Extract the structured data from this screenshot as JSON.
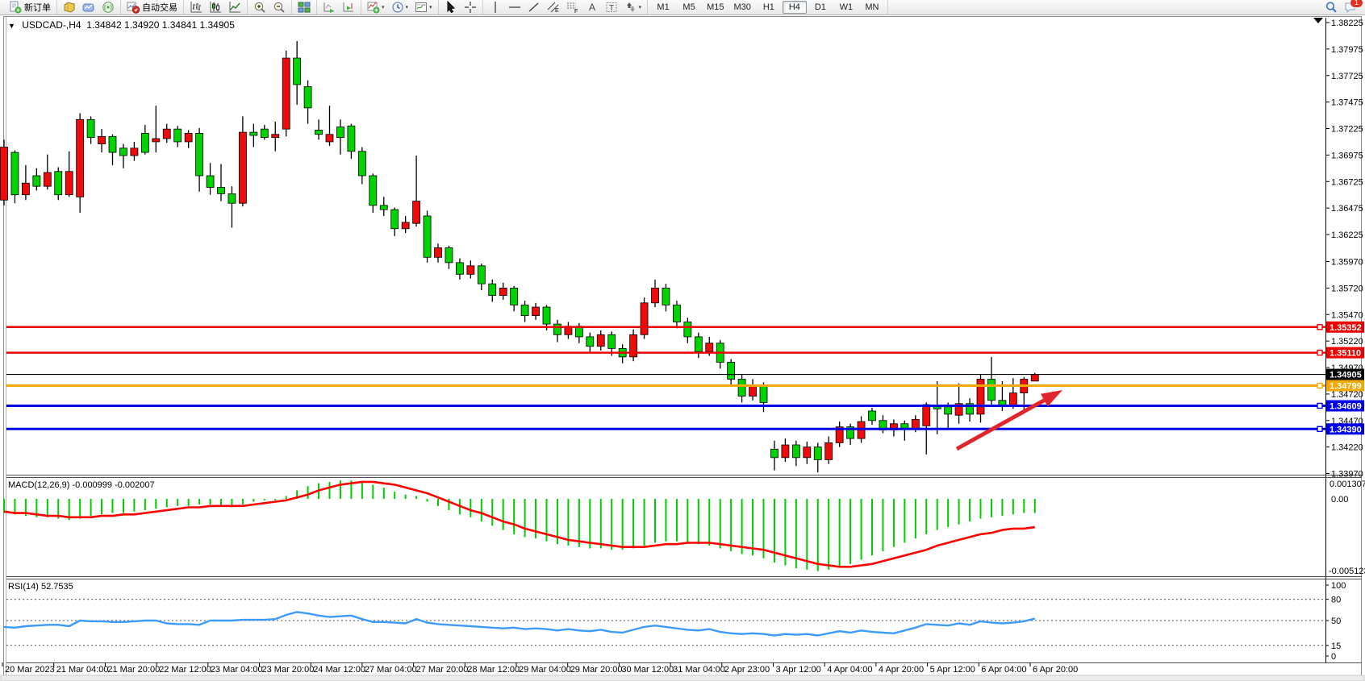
{
  "toolbar": {
    "groups": [
      {
        "items": [
          {
            "name": "new-order-button",
            "icon": "new-order",
            "label": "新订单"
          }
        ]
      },
      {
        "items": [
          {
            "name": "profiles-button",
            "icon": "profiles"
          },
          {
            "name": "charts-button",
            "icon": "charts-cloud"
          },
          {
            "name": "broadcast-button",
            "icon": "broadcast"
          }
        ]
      },
      {
        "items": [
          {
            "name": "auto-trading-button",
            "icon": "auto-trading",
            "label": "自动交易"
          }
        ]
      },
      {
        "items": [
          {
            "name": "bar-chart-button",
            "icon": "bars"
          },
          {
            "name": "candlestick-button",
            "icon": "candles"
          },
          {
            "name": "line-chart-button",
            "icon": "line"
          }
        ]
      },
      {
        "items": [
          {
            "name": "zoom-in-button",
            "icon": "zoom-in"
          },
          {
            "name": "zoom-out-button",
            "icon": "zoom-out"
          }
        ]
      },
      {
        "items": [
          {
            "name": "tile-windows-button",
            "icon": "tile"
          }
        ]
      },
      {
        "items": [
          {
            "name": "auto-scroll-button",
            "icon": "auto-scroll"
          },
          {
            "name": "chart-shift-button",
            "icon": "chart-shift"
          }
        ]
      },
      {
        "items": [
          {
            "name": "indicators-button",
            "icon": "indicators",
            "dropdown": true
          },
          {
            "name": "periods-button",
            "icon": "clock",
            "dropdown": true
          },
          {
            "name": "templates-button",
            "icon": "template",
            "dropdown": true
          }
        ]
      },
      {
        "items": [
          {
            "name": "cursor-button",
            "icon": "cursor"
          },
          {
            "name": "crosshair-button",
            "icon": "crosshair"
          }
        ]
      },
      {
        "items": [
          {
            "name": "vline-button",
            "icon": "vline"
          },
          {
            "name": "hline-button",
            "icon": "hline"
          },
          {
            "name": "trendline-button",
            "icon": "trendline"
          },
          {
            "name": "channel-button",
            "icon": "channel"
          },
          {
            "name": "fibonacci-button",
            "icon": "fibonacci"
          },
          {
            "name": "text-button",
            "icon": "text"
          },
          {
            "name": "label-button",
            "icon": "label"
          },
          {
            "name": "arrows-button",
            "icon": "arrows",
            "dropdown": true
          }
        ]
      }
    ],
    "timeframes": {
      "items": [
        "M1",
        "M5",
        "M15",
        "M30",
        "H1",
        "H4",
        "D1",
        "W1",
        "MN"
      ],
      "active": "H4"
    },
    "right": {
      "search_icon": "search",
      "chat_icon": "chat",
      "chat_badge": "1"
    }
  },
  "chart": {
    "title": {
      "symbol": "USDCAD-,H4",
      "open": "1.34842",
      "high": "1.34920",
      "low": "1.34841",
      "close": "1.34905"
    },
    "price_axis": {
      "ticks": [
        "1.38225",
        "1.37975",
        "1.37725",
        "1.37475",
        "1.37225",
        "1.36975",
        "1.36725",
        "1.36475",
        "1.36225",
        "1.35970",
        "1.35720",
        "1.35470",
        "1.35220",
        "1.34970",
        "1.34720",
        "1.34470",
        "1.34220",
        "1.33970"
      ]
    },
    "time_axis": {
      "labels": [
        "20 Mar 2023",
        "21 Mar 04:00",
        "21 Mar 20:00",
        "22 Mar 12:00",
        "23 Mar 04:00",
        "23 Mar 20:00",
        "24 Mar 12:00",
        "27 Mar 04:00",
        "27 Mar 20:00",
        "28 Mar 12:00",
        "29 Mar 04:00",
        "29 Mar 20:00",
        "30 Mar 12:00",
        "31 Mar 04:00",
        "2 Apr 23:00",
        "3 Apr 12:00",
        "4 Apr 04:00",
        "4 Apr 20:00",
        "5 Apr 12:00",
        "6 Apr 04:00",
        "6 Apr 20:00"
      ]
    },
    "hlines": [
      {
        "name": "resistance-1",
        "price": 1.35352,
        "label": "1.35352",
        "color": "#ec0000",
        "width": 2.5,
        "handle": true
      },
      {
        "name": "resistance-2",
        "price": 1.3511,
        "label": "1.35110",
        "color": "#ec0000",
        "width": 2.5,
        "handle": true
      },
      {
        "name": "current-price",
        "price": 1.34905,
        "label": "1.34905",
        "color": "#000000",
        "width": 1.2,
        "handle": false
      },
      {
        "name": "pivot",
        "price": 1.34799,
        "label": "1.34799",
        "color": "#f5a800",
        "width": 3,
        "handle": true
      },
      {
        "name": "support-1",
        "price": 1.34609,
        "label": "1.34609",
        "color": "#0000e8",
        "width": 3,
        "handle": true
      },
      {
        "name": "support-2",
        "price": 1.3439,
        "label": "1.34390",
        "color": "#0000e8",
        "width": 3,
        "handle": true
      }
    ],
    "macd_axis": [
      "0.001307",
      "0.00",
      "-0.005123"
    ],
    "rsi_axis": [
      "100",
      "80",
      "50",
      "15",
      "0"
    ]
  },
  "chart_data": {
    "type": "candlestick",
    "title": "USDCAD-,H4",
    "symbol": "USDCAD",
    "timeframe": "H4",
    "color_convention": "red=bullish, green=bearish",
    "price_range": [
      1.33951,
      1.38225
    ],
    "candles": [
      [
        1.3655,
        1.3712,
        1.365,
        1.3705
      ],
      [
        1.37,
        1.3702,
        1.3652,
        1.366
      ],
      [
        1.366,
        1.3688,
        1.3655,
        1.3671
      ],
      [
        1.3678,
        1.3685,
        1.3664,
        1.3668
      ],
      [
        1.3668,
        1.3698,
        1.3665,
        1.3681
      ],
      [
        1.3682,
        1.3686,
        1.3655,
        1.366
      ],
      [
        1.366,
        1.3701,
        1.3658,
        1.3682
      ],
      [
        1.3658,
        1.3737,
        1.3643,
        1.3731
      ],
      [
        1.3731,
        1.3734,
        1.3708,
        1.3714
      ],
      [
        1.3708,
        1.3722,
        1.37,
        1.3715
      ],
      [
        1.3715,
        1.3717,
        1.3688,
        1.37
      ],
      [
        1.3704,
        1.3708,
        1.3685,
        1.3697
      ],
      [
        1.3697,
        1.371,
        1.3692,
        1.3704
      ],
      [
        1.3718,
        1.3726,
        1.3698,
        1.37
      ],
      [
        1.371,
        1.3744,
        1.37,
        1.3713
      ],
      [
        1.3713,
        1.3727,
        1.3709,
        1.3722
      ],
      [
        1.3722,
        1.3725,
        1.3705,
        1.371
      ],
      [
        1.371,
        1.3721,
        1.3704,
        1.3718
      ],
      [
        1.3718,
        1.3723,
        1.3663,
        1.3678
      ],
      [
        1.3678,
        1.369,
        1.366,
        1.3667
      ],
      [
        1.3667,
        1.3689,
        1.3654,
        1.3661
      ],
      [
        1.3661,
        1.3668,
        1.3629,
        1.3652
      ],
      [
        1.3652,
        1.3734,
        1.3649,
        1.3719
      ],
      [
        1.3719,
        1.3727,
        1.3705,
        1.3716
      ],
      [
        1.3722,
        1.3726,
        1.3712,
        1.3714
      ],
      [
        1.3714,
        1.3729,
        1.3701,
        1.3717
      ],
      [
        1.3722,
        1.3796,
        1.3715,
        1.3789
      ],
      [
        1.3789,
        1.3805,
        1.3745,
        1.3764
      ],
      [
        1.3762,
        1.3768,
        1.3727,
        1.3742
      ],
      [
        1.3721,
        1.3731,
        1.3712,
        1.3717
      ],
      [
        1.371,
        1.3744,
        1.3706,
        1.3717
      ],
      [
        1.3724,
        1.3731,
        1.3698,
        1.3714
      ],
      [
        1.3725,
        1.3727,
        1.3694,
        1.3701
      ],
      [
        1.3701,
        1.3705,
        1.367,
        1.3678
      ],
      [
        1.3678,
        1.368,
        1.3643,
        1.365
      ],
      [
        1.365,
        1.3658,
        1.364,
        1.3646
      ],
      [
        1.3646,
        1.3648,
        1.3621,
        1.3628
      ],
      [
        1.3628,
        1.364,
        1.3624,
        1.3634
      ],
      [
        1.3633,
        1.3697,
        1.363,
        1.3654
      ],
      [
        1.364,
        1.3645,
        1.3596,
        1.3601
      ],
      [
        1.3601,
        1.3614,
        1.3596,
        1.361
      ],
      [
        1.361,
        1.3612,
        1.359,
        1.3596
      ],
      [
        1.3596,
        1.36,
        1.358,
        1.3585
      ],
      [
        1.3585,
        1.3598,
        1.3581,
        1.3593
      ],
      [
        1.3593,
        1.3595,
        1.357,
        1.3576
      ],
      [
        1.3576,
        1.358,
        1.3559,
        1.3565
      ],
      [
        1.3565,
        1.3577,
        1.3561,
        1.3572
      ],
      [
        1.3572,
        1.3574,
        1.355,
        1.3556
      ],
      [
        1.3556,
        1.356,
        1.354,
        1.3546
      ],
      [
        1.3546,
        1.3558,
        1.3542,
        1.3554
      ],
      [
        1.3554,
        1.3556,
        1.3532,
        1.3538
      ],
      [
        1.3538,
        1.3542,
        1.3521,
        1.3528
      ],
      [
        1.3528,
        1.354,
        1.3524,
        1.3536
      ],
      [
        1.3536,
        1.3539,
        1.352,
        1.3526
      ],
      [
        1.3526,
        1.353,
        1.3511,
        1.3517
      ],
      [
        1.3517,
        1.3532,
        1.3513,
        1.3528
      ],
      [
        1.3528,
        1.3531,
        1.3508,
        1.3515
      ],
      [
        1.3515,
        1.3519,
        1.3501,
        1.3507
      ],
      [
        1.3507,
        1.3533,
        1.3503,
        1.3528
      ],
      [
        1.3528,
        1.3563,
        1.3524,
        1.3558
      ],
      [
        1.3558,
        1.358,
        1.3554,
        1.3572
      ],
      [
        1.3572,
        1.3576,
        1.355,
        1.3556
      ],
      [
        1.3556,
        1.356,
        1.3534,
        1.354
      ],
      [
        1.354,
        1.3544,
        1.352,
        1.3526
      ],
      [
        1.3526,
        1.353,
        1.3506,
        1.3512
      ],
      [
        1.3512,
        1.3526,
        1.3508,
        1.352
      ],
      [
        1.352,
        1.3523,
        1.3496,
        1.3502
      ],
      [
        1.3502,
        1.3505,
        1.348,
        1.3486
      ],
      [
        1.3486,
        1.349,
        1.3464,
        1.347
      ],
      [
        1.347,
        1.3486,
        1.3466,
        1.348
      ],
      [
        1.348,
        1.3483,
        1.3455,
        1.3464
      ],
      [
        1.342,
        1.3428,
        1.34,
        1.3412
      ],
      [
        1.3412,
        1.343,
        1.3408,
        1.3424
      ],
      [
        1.3424,
        1.3428,
        1.3404,
        1.3412
      ],
      [
        1.3412,
        1.3427,
        1.3406,
        1.3422
      ],
      [
        1.3422,
        1.3426,
        1.3398,
        1.341
      ],
      [
        1.341,
        1.3432,
        1.3406,
        1.3426
      ],
      [
        1.3426,
        1.3446,
        1.3422,
        1.3441
      ],
      [
        1.3441,
        1.3444,
        1.3424,
        1.343
      ],
      [
        1.343,
        1.3451,
        1.3426,
        1.3446
      ],
      [
        1.3456,
        1.3459,
        1.3443,
        1.3447
      ],
      [
        1.3447,
        1.3452,
        1.3435,
        1.3438
      ],
      [
        1.3438,
        1.3448,
        1.3432,
        1.3444
      ],
      [
        1.3444,
        1.3447,
        1.3428,
        1.3439
      ],
      [
        1.3439,
        1.3452,
        1.3436,
        1.3448
      ],
      [
        1.3442,
        1.3464,
        1.3415,
        1.3462
      ],
      [
        1.346,
        1.3484,
        1.3434,
        1.3458
      ],
      [
        1.346,
        1.3464,
        1.344,
        1.3453
      ],
      [
        1.3452,
        1.3482,
        1.3444,
        1.3463
      ],
      [
        1.3463,
        1.3468,
        1.3446,
        1.3453
      ],
      [
        1.3453,
        1.3491,
        1.3445,
        1.3486
      ],
      [
        1.3486,
        1.3507,
        1.3462,
        1.3466
      ],
      [
        1.3466,
        1.3484,
        1.3456,
        1.3461
      ],
      [
        1.3461,
        1.3487,
        1.3458,
        1.3473
      ],
      [
        1.3473,
        1.3488,
        1.3456,
        1.3486
      ],
      [
        1.34842,
        1.3492,
        1.34841,
        1.34905
      ]
    ],
    "indicators": {
      "macd": {
        "label": "MACD(12,26,9)",
        "values_text": "-0.000999 -0.002007",
        "range": [
          -0.005123,
          0.001307
        ],
        "histogram": [
          -0.001,
          -0.0011,
          -0.0012,
          -0.0013,
          -0.0013,
          -0.0014,
          -0.0015,
          -0.0014,
          -0.0012,
          -0.0011,
          -0.001,
          -0.001,
          -0.0009,
          -0.0008,
          -0.0007,
          -0.0006,
          -0.0005,
          -0.0005,
          -0.0004,
          -0.0004,
          -0.0005,
          -0.0006,
          -0.0004,
          -0.0002,
          -0.0001,
          -0.0001,
          0.0002,
          0.0006,
          0.0009,
          0.0011,
          0.0012,
          0.0013,
          0.0013,
          0.0012,
          0.001,
          0.0008,
          0.0005,
          0.0003,
          0.0002,
          -0.0002,
          -0.0005,
          -0.0008,
          -0.0011,
          -0.0013,
          -0.0016,
          -0.0019,
          -0.0022,
          -0.0025,
          -0.0027,
          -0.0028,
          -0.003,
          -0.0032,
          -0.0033,
          -0.0034,
          -0.0035,
          -0.0035,
          -0.0036,
          -0.0036,
          -0.0035,
          -0.0033,
          -0.0031,
          -0.003,
          -0.003,
          -0.0031,
          -0.0032,
          -0.0033,
          -0.0035,
          -0.0037,
          -0.0039,
          -0.004,
          -0.0042,
          -0.0045,
          -0.0047,
          -0.0049,
          -0.005,
          -0.0051,
          -0.005,
          -0.0048,
          -0.0046,
          -0.0043,
          -0.004,
          -0.0037,
          -0.0034,
          -0.0031,
          -0.0028,
          -0.0025,
          -0.0022,
          -0.002,
          -0.0018,
          -0.0016,
          -0.0014,
          -0.0013,
          -0.0012,
          -0.0011,
          -0.001,
          -0.001
        ],
        "signal": [
          -0.0009,
          -0.001,
          -0.001,
          -0.0011,
          -0.0012,
          -0.0012,
          -0.0013,
          -0.0013,
          -0.0013,
          -0.0012,
          -0.0012,
          -0.0011,
          -0.0011,
          -0.001,
          -0.0009,
          -0.0008,
          -0.0007,
          -0.0006,
          -0.0006,
          -0.0005,
          -0.0005,
          -0.0005,
          -0.0005,
          -0.0004,
          -0.0003,
          -0.0002,
          -0.0001,
          0.0001,
          0.0003,
          0.0006,
          0.0008,
          0.001,
          0.0011,
          0.0012,
          0.0012,
          0.0011,
          0.001,
          0.0008,
          0.0006,
          0.0004,
          0.0001,
          -0.0002,
          -0.0005,
          -0.0008,
          -0.001,
          -0.0013,
          -0.0016,
          -0.0018,
          -0.0021,
          -0.0023,
          -0.0025,
          -0.0027,
          -0.0029,
          -0.003,
          -0.0031,
          -0.0032,
          -0.0033,
          -0.0034,
          -0.0034,
          -0.0034,
          -0.0033,
          -0.0032,
          -0.0032,
          -0.0031,
          -0.0031,
          -0.0031,
          -0.0032,
          -0.0033,
          -0.0034,
          -0.0035,
          -0.0036,
          -0.0038,
          -0.004,
          -0.0042,
          -0.0044,
          -0.0046,
          -0.0047,
          -0.0048,
          -0.0048,
          -0.0047,
          -0.0046,
          -0.0044,
          -0.0042,
          -0.004,
          -0.0038,
          -0.0036,
          -0.0033,
          -0.0031,
          -0.0029,
          -0.0027,
          -0.0025,
          -0.0024,
          -0.0022,
          -0.0021,
          -0.0021,
          -0.002
        ]
      },
      "rsi": {
        "label": "RSI(14)",
        "value_text": "52.7535",
        "levels": [
          80,
          50,
          15
        ],
        "series": [
          41,
          40,
          42,
          43,
          44,
          44,
          42,
          50,
          49,
          49,
          48,
          48,
          49,
          50,
          50,
          46,
          45,
          45,
          44,
          50,
          50,
          50,
          51,
          51,
          51,
          52,
          58,
          62,
          60,
          57,
          55,
          56,
          57,
          52,
          48,
          48,
          47,
          46,
          52,
          47,
          45,
          44,
          43,
          42,
          41,
          40,
          39,
          40,
          38,
          39,
          38,
          36,
          38,
          36,
          35,
          37,
          34,
          33,
          37,
          41,
          43,
          41,
          39,
          37,
          36,
          38,
          34,
          32,
          31,
          32,
          31,
          29,
          31,
          30,
          31,
          29,
          32,
          35,
          33,
          36,
          34,
          33,
          32,
          36,
          40,
          45,
          44,
          43,
          46,
          44,
          49,
          47,
          46,
          47,
          49,
          52.75
        ]
      }
    },
    "annotations": [
      {
        "name": "trend-arrow",
        "type": "arrow",
        "color": "#e0262c",
        "from_xy": [
          1186,
          557
        ],
        "to_xy": [
          1317,
          484
        ]
      }
    ],
    "legend_position": "none",
    "grid": "off"
  }
}
